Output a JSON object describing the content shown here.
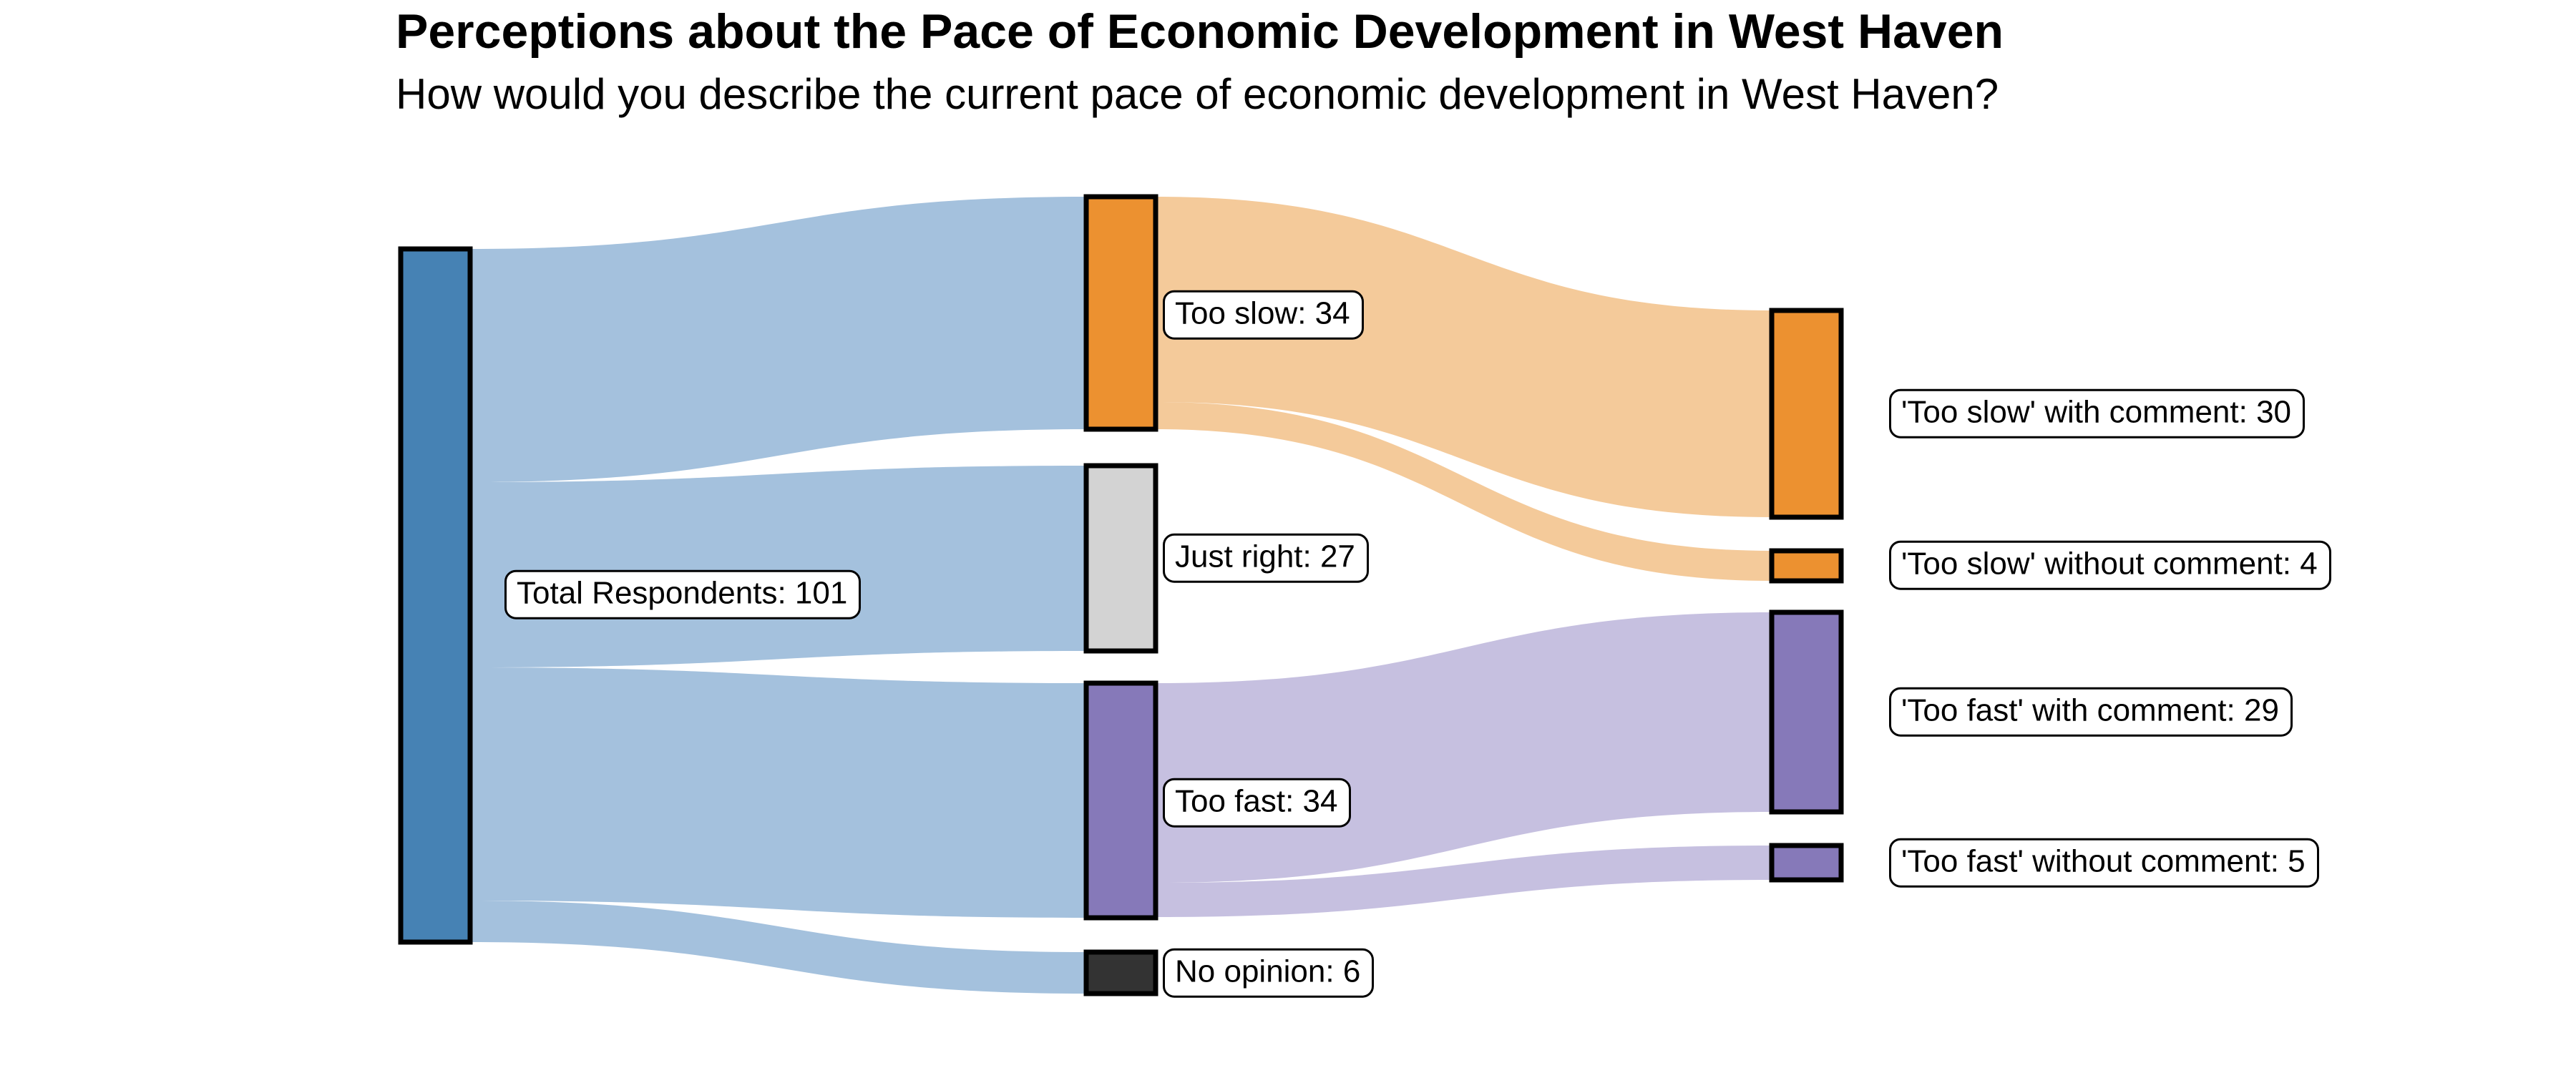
{
  "title": "Perceptions about the Pace of Economic Development in West Haven",
  "subtitle": "How would you describe the current pace of economic development in West Haven?",
  "colors": {
    "blue_node": "#4682b4",
    "blue_flow": "#a4c1dd",
    "orange_node": "#ec9130",
    "orange_flow": "#f4ca9a",
    "gray_node": "#d3d3d3",
    "purple_node": "#8679b9",
    "purple_flow": "#c6c0e0",
    "dark_node": "#333333",
    "node_border": "#000000",
    "label_background": "#ffffff",
    "label_border": "#000000",
    "text": "#000000"
  },
  "chart_data": {
    "type": "sankey",
    "title": "Perceptions about the Pace of Economic Development in West Haven",
    "subtitle": "How would you describe the current pace of economic development in West Haven?",
    "orientation": "horizontal",
    "total_value": 101,
    "nodes": [
      {
        "id": "total",
        "column": 0,
        "name": "Total Respondents",
        "value": 101,
        "label": "Total Respondents: 101",
        "color_key": "blue_node"
      },
      {
        "id": "too_slow",
        "column": 1,
        "name": "Too slow",
        "value": 34,
        "label": "Too slow: 34",
        "color_key": "orange_node"
      },
      {
        "id": "just_right",
        "column": 1,
        "name": "Just right",
        "value": 27,
        "label": "Just right: 27",
        "color_key": "gray_node"
      },
      {
        "id": "too_fast",
        "column": 1,
        "name": "Too fast",
        "value": 34,
        "label": "Too fast: 34",
        "color_key": "purple_node"
      },
      {
        "id": "no_opinion",
        "column": 1,
        "name": "No opinion",
        "value": 6,
        "label": "No opinion: 6",
        "color_key": "dark_node"
      },
      {
        "id": "ts_with",
        "column": 2,
        "name": "'Too slow' with comment",
        "value": 30,
        "label": "'Too slow' with comment: 30",
        "color_key": "orange_node"
      },
      {
        "id": "ts_without",
        "column": 2,
        "name": "'Too slow' without comment",
        "value": 4,
        "label": "'Too slow' without comment: 4",
        "color_key": "orange_node"
      },
      {
        "id": "tf_with",
        "column": 2,
        "name": "'Too fast' with comment",
        "value": 29,
        "label": "'Too fast' with comment: 29",
        "color_key": "purple_node"
      },
      {
        "id": "tf_without",
        "column": 2,
        "name": "'Too fast' without comment",
        "value": 5,
        "label": "'Too fast' without comment: 5",
        "color_key": "purple_node"
      }
    ],
    "links": [
      {
        "source": "total",
        "target": "too_slow",
        "value": 34,
        "color_key": "blue_flow"
      },
      {
        "source": "total",
        "target": "just_right",
        "value": 27,
        "color_key": "blue_flow"
      },
      {
        "source": "total",
        "target": "too_fast",
        "value": 34,
        "color_key": "blue_flow"
      },
      {
        "source": "total",
        "target": "no_opinion",
        "value": 6,
        "color_key": "blue_flow"
      },
      {
        "source": "too_slow",
        "target": "ts_with",
        "value": 30,
        "color_key": "orange_flow"
      },
      {
        "source": "too_slow",
        "target": "ts_without",
        "value": 4,
        "color_key": "orange_flow"
      },
      {
        "source": "too_fast",
        "target": "tf_with",
        "value": 29,
        "color_key": "purple_flow"
      },
      {
        "source": "too_fast",
        "target": "tf_without",
        "value": 5,
        "color_key": "purple_flow"
      }
    ]
  }
}
